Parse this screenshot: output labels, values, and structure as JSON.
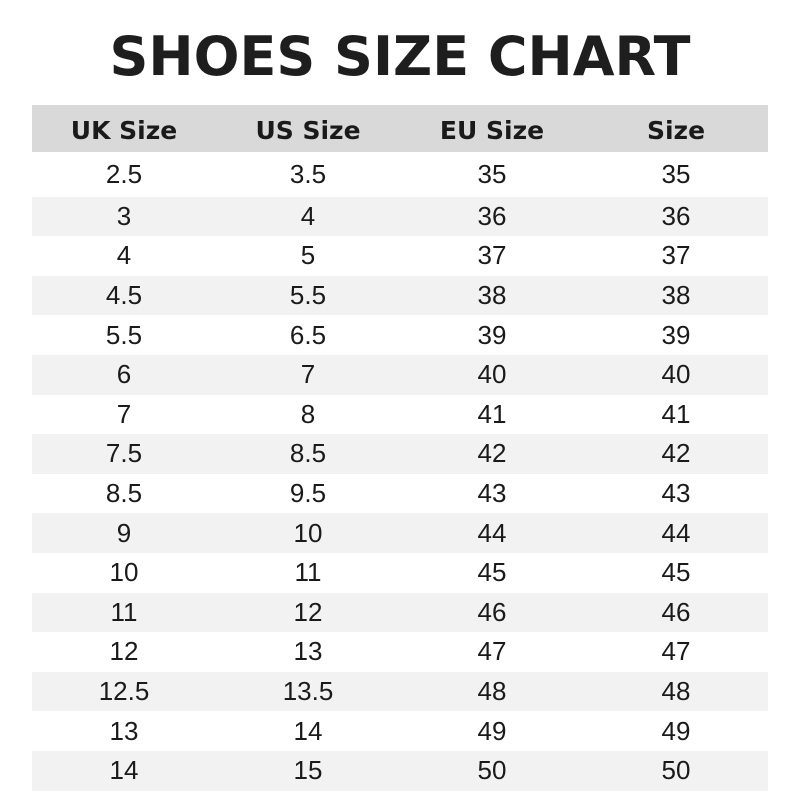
{
  "chart_data": {
    "type": "table",
    "title": "SHOES SIZE CHART",
    "columns": [
      "UK Size",
      "US Size",
      "EU Size",
      "Size"
    ],
    "rows": [
      [
        "2.5",
        "3.5",
        "35",
        "35"
      ],
      [
        "3",
        "4",
        "36",
        "36"
      ],
      [
        "4",
        "5",
        "37",
        "37"
      ],
      [
        "4.5",
        "5.5",
        "38",
        "38"
      ],
      [
        "5.5",
        "6.5",
        "39",
        "39"
      ],
      [
        "6",
        "7",
        "40",
        "40"
      ],
      [
        "7",
        "8",
        "41",
        "41"
      ],
      [
        "7.5",
        "8.5",
        "42",
        "42"
      ],
      [
        "8.5",
        "9.5",
        "43",
        "43"
      ],
      [
        "9",
        "10",
        "44",
        "44"
      ],
      [
        "10",
        "11",
        "45",
        "45"
      ],
      [
        "11",
        "12",
        "46",
        "46"
      ],
      [
        "12",
        "13",
        "47",
        "47"
      ],
      [
        "12.5",
        "13.5",
        "48",
        "48"
      ],
      [
        "13",
        "14",
        "49",
        "49"
      ],
      [
        "14",
        "15",
        "50",
        "50"
      ]
    ],
    "colors": {
      "header_bg": "#d9d9d9",
      "alt_row_bg": "#f2f2f2",
      "text": "#1a1a1a"
    }
  }
}
